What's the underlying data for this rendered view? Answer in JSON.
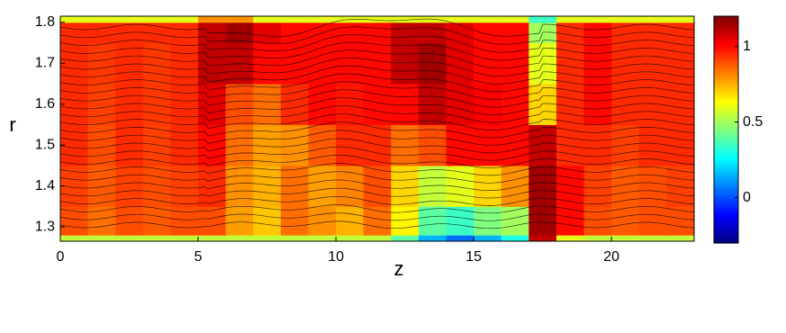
{
  "chart_data": {
    "type": "heatmap",
    "x_label": "z",
    "y_label": "r",
    "xlim": [
      0,
      23
    ],
    "ylim": [
      1.265,
      1.815
    ],
    "xticks": [
      0,
      5,
      10,
      15,
      20
    ],
    "yticks": [
      1.3,
      1.4,
      1.5,
      1.6,
      1.7,
      1.8
    ],
    "x_edges": [
      0,
      1,
      2,
      3,
      4,
      5,
      6,
      7,
      8,
      9,
      10,
      11,
      12,
      13,
      14,
      15,
      16,
      17,
      18,
      19,
      20,
      21,
      22,
      23
    ],
    "y_edges": [
      1.265,
      1.28,
      1.35,
      1.45,
      1.55,
      1.65,
      1.75,
      1.8,
      1.815
    ],
    "values": [
      [
        0.55,
        0.55,
        0.55,
        0.55,
        0.55,
        0.55,
        0.55,
        0.55,
        0.55,
        0.55,
        0.55,
        0.55,
        0.4,
        0.15,
        0.05,
        0.15,
        0.3,
        1.1,
        0.6,
        0.55,
        0.55,
        0.55,
        0.55
      ],
      [
        0.9,
        0.85,
        0.9,
        0.88,
        0.9,
        0.9,
        0.78,
        0.72,
        0.85,
        0.8,
        0.75,
        0.85,
        0.65,
        0.4,
        0.35,
        0.45,
        0.5,
        1.15,
        1.0,
        0.9,
        0.88,
        0.9,
        0.9
      ],
      [
        0.92,
        0.88,
        0.92,
        0.9,
        0.92,
        0.95,
        0.8,
        0.75,
        0.85,
        0.78,
        0.82,
        0.9,
        0.7,
        0.55,
        0.6,
        0.7,
        0.8,
        1.15,
        1.0,
        0.92,
        0.88,
        0.9,
        0.92
      ],
      [
        0.95,
        0.9,
        0.95,
        0.92,
        0.95,
        1.0,
        0.85,
        0.78,
        0.8,
        0.88,
        0.95,
        0.95,
        0.85,
        0.9,
        1.0,
        1.0,
        1.0,
        1.1,
        0.95,
        0.95,
        0.92,
        0.95,
        0.95
      ],
      [
        0.95,
        0.92,
        0.95,
        0.93,
        0.95,
        1.05,
        0.9,
        0.85,
        0.95,
        1.0,
        0.98,
        1.0,
        1.0,
        1.1,
        1.05,
        1.02,
        1.0,
        0.7,
        0.95,
        1.0,
        0.95,
        0.95,
        0.95
      ],
      [
        0.95,
        0.93,
        0.95,
        0.93,
        0.95,
        1.1,
        1.1,
        1.0,
        1.0,
        1.0,
        1.0,
        1.0,
        1.1,
        1.15,
        1.05,
        1.0,
        1.0,
        0.6,
        0.95,
        1.0,
        0.95,
        0.95,
        0.95
      ],
      [
        0.95,
        0.95,
        0.95,
        0.95,
        0.95,
        1.1,
        1.15,
        1.05,
        1.0,
        1.0,
        1.0,
        1.0,
        1.1,
        1.1,
        1.05,
        1.0,
        1.0,
        0.5,
        0.95,
        1.0,
        0.95,
        0.95,
        0.95
      ],
      [
        0.6,
        0.6,
        0.6,
        0.6,
        0.6,
        0.8,
        0.8,
        0.6,
        0.6,
        0.6,
        0.6,
        0.6,
        0.6,
        0.6,
        0.6,
        0.6,
        0.6,
        0.35,
        0.6,
        0.6,
        0.6,
        0.6,
        0.6
      ]
    ],
    "colorbar": {
      "clim": [
        -0.3,
        1.2
      ],
      "ticks": [
        0,
        0.5,
        1
      ]
    }
  }
}
